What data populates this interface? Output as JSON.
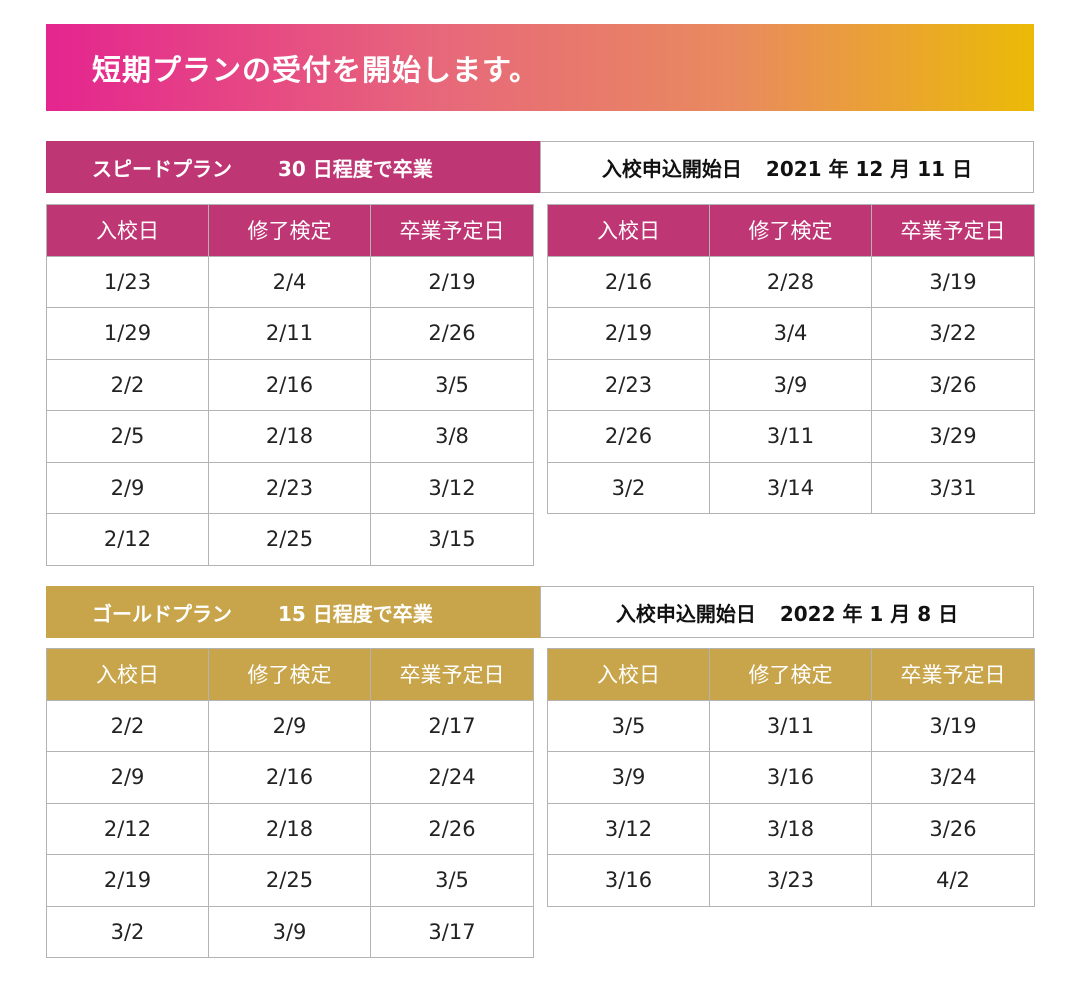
{
  "banner": {
    "text": "短期プランの受付を開始します。"
  },
  "columns": [
    "入校日",
    "修了検定",
    "卒業予定日"
  ],
  "colors": {
    "speed": "#bf3674",
    "gold": "#c8a54a",
    "banner_from": "#e4258f",
    "banner_to": "#ebba07"
  },
  "plans": [
    {
      "name": "スピードプラン",
      "duration": "30 日程度で卒業",
      "start_label": "入校申込開始日",
      "start_date": "2021 年 12 月 11 日",
      "tables": [
        {
          "rows": [
            [
              "1/23",
              "2/4",
              "2/19"
            ],
            [
              "1/29",
              "2/11",
              "2/26"
            ],
            [
              "2/2",
              "2/16",
              "3/5"
            ],
            [
              "2/5",
              "2/18",
              "3/8"
            ],
            [
              "2/9",
              "2/23",
              "3/12"
            ],
            [
              "2/12",
              "2/25",
              "3/15"
            ]
          ]
        },
        {
          "rows": [
            [
              "2/16",
              "2/28",
              "3/19"
            ],
            [
              "2/19",
              "3/4",
              "3/22"
            ],
            [
              "2/23",
              "3/9",
              "3/26"
            ],
            [
              "2/26",
              "3/11",
              "3/29"
            ],
            [
              "3/2",
              "3/14",
              "3/31"
            ]
          ]
        }
      ]
    },
    {
      "name": "ゴールドプラン",
      "duration": "15 日程度で卒業",
      "start_label": "入校申込開始日",
      "start_date": "2022 年 1 月 8 日",
      "tables": [
        {
          "rows": [
            [
              "2/2",
              "2/9",
              "2/17"
            ],
            [
              "2/9",
              "2/16",
              "2/24"
            ],
            [
              "2/12",
              "2/18",
              "2/26"
            ],
            [
              "2/19",
              "2/25",
              "3/5"
            ],
            [
              "3/2",
              "3/9",
              "3/17"
            ]
          ]
        },
        {
          "rows": [
            [
              "3/5",
              "3/11",
              "3/19"
            ],
            [
              "3/9",
              "3/16",
              "3/24"
            ],
            [
              "3/12",
              "3/18",
              "3/26"
            ],
            [
              "3/16",
              "3/23",
              "4/2"
            ]
          ]
        }
      ]
    }
  ]
}
